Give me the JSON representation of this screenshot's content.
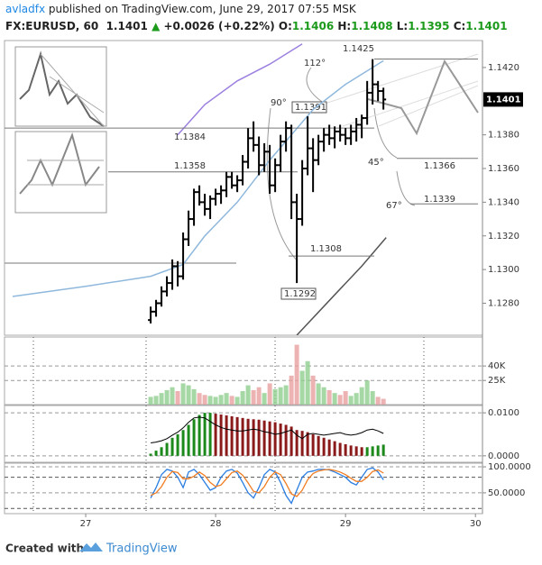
{
  "header": {
    "author": "avladfx",
    "published": "published on TradingView.com, June 29, 2017 07:55 MSK",
    "symbol": "FX:EURUSD, 60",
    "last": "1.1401",
    "change": "+0.0026 (+0.22%)",
    "ohlc": [
      {
        "label": "O:",
        "value": "1.1406"
      },
      {
        "label": "H:",
        "value": "1.1408"
      },
      {
        "label": "L:",
        "value": "1.1395"
      },
      {
        "label": "C:",
        "value": "1.1401"
      }
    ]
  },
  "footer": {
    "created": "Created with",
    "brand": "TradingView"
  },
  "chart_data": [
    {
      "type": "ohlc",
      "color": "#000000",
      "last": 1.1401,
      "x": [
        36,
        37,
        38,
        39,
        40,
        41,
        42,
        43,
        44,
        45,
        46,
        47,
        48,
        49,
        50,
        51,
        52,
        53,
        54,
        55,
        56,
        57,
        58,
        59,
        60,
        61,
        62,
        63,
        64,
        65,
        66,
        67,
        68,
        69,
        70,
        71,
        72,
        73,
        74,
        75,
        76,
        77,
        78,
        79
      ],
      "open": [
        1.127,
        1.1275,
        1.128,
        1.1287,
        1.1292,
        1.1302,
        1.1296,
        1.1318,
        1.133,
        1.1346,
        1.134,
        1.1336,
        1.1342,
        1.1345,
        1.1347,
        1.1355,
        1.135,
        1.1353,
        1.1364,
        1.1378,
        1.1374,
        1.1362,
        1.137,
        1.135,
        1.1362,
        1.1376,
        1.1384,
        1.134,
        1.133,
        1.136,
        1.1372,
        1.1365,
        1.1376,
        1.138,
        1.1378,
        1.1382,
        1.138,
        1.1378,
        1.1382,
        1.1386,
        1.139,
        1.1405,
        1.141,
        1.1406
      ],
      "high": [
        1.1278,
        1.1282,
        1.129,
        1.1296,
        1.1306,
        1.1305,
        1.1322,
        1.1335,
        1.1348,
        1.135,
        1.1345,
        1.1344,
        1.1348,
        1.135,
        1.1358,
        1.1358,
        1.1356,
        1.1368,
        1.1384,
        1.1388,
        1.1379,
        1.1375,
        1.1374,
        1.1366,
        1.138,
        1.1388,
        1.1386,
        1.1345,
        1.1365,
        1.1391,
        1.1378,
        1.138,
        1.1384,
        1.1386,
        1.1385,
        1.1386,
        1.1384,
        1.1386,
        1.139,
        1.1392,
        1.1412,
        1.1425,
        1.1412,
        1.1408
      ],
      "low": [
        1.1268,
        1.1272,
        1.1278,
        1.1284,
        1.1288,
        1.129,
        1.1294,
        1.1314,
        1.1326,
        1.1338,
        1.1332,
        1.133,
        1.1338,
        1.1339,
        1.1343,
        1.1348,
        1.1346,
        1.135,
        1.136,
        1.137,
        1.1356,
        1.1358,
        1.1345,
        1.1346,
        1.1358,
        1.137,
        1.133,
        1.1292,
        1.1326,
        1.1356,
        1.1346,
        1.1362,
        1.137,
        1.1374,
        1.1372,
        1.1376,
        1.1374,
        1.1374,
        1.1376,
        1.1378,
        1.1386,
        1.1398,
        1.14,
        1.1395
      ],
      "close": [
        1.1275,
        1.128,
        1.1287,
        1.1292,
        1.1302,
        1.1296,
        1.1318,
        1.133,
        1.1346,
        1.134,
        1.1336,
        1.1342,
        1.1345,
        1.1347,
        1.1355,
        1.135,
        1.1353,
        1.1364,
        1.1378,
        1.1374,
        1.1362,
        1.137,
        1.135,
        1.1362,
        1.1376,
        1.1384,
        1.134,
        1.133,
        1.136,
        1.1372,
        1.1365,
        1.1376,
        1.138,
        1.1378,
        1.1382,
        1.138,
        1.1378,
        1.1382,
        1.1386,
        1.139,
        1.1405,
        1.141,
        1.1406,
        1.1401
      ],
      "lines": [
        {
          "color": "#8fb8dc",
          "x": [
            10.5,
            24,
            36,
            42,
            46,
            52,
            58,
            66,
            72,
            79
          ],
          "values": [
            1.1284,
            1.129,
            1.1296,
            1.1303,
            1.132,
            1.134,
            1.1365,
            1.1395,
            1.141,
            1.1424
          ]
        },
        {
          "color": "#9c80e0",
          "x": [
            41,
            46,
            52,
            58,
            64
          ],
          "values": [
            1.138,
            1.1398,
            1.1412,
            1.1422,
            1.1434
          ]
        },
        {
          "color": "#555555",
          "x": [
            63,
            70,
            75,
            79.5
          ],
          "values": [
            1.1261,
            1.1285,
            1.1302,
            1.1319
          ]
        }
      ],
      "levels": [
        {
          "value": 1.1425,
          "label": "1.1425"
        },
        {
          "value": 1.1384,
          "label": "1.1384"
        },
        {
          "value": 1.1358,
          "label": "1.1358"
        },
        {
          "value": 1.1308,
          "label": "1.1308"
        },
        {
          "value": 1.1366,
          "label": "1.1366"
        },
        {
          "value": 1.1339,
          "label": "1.1339"
        }
      ],
      "annotations": [
        "112°",
        "90°",
        "45°",
        "67°",
        "1.1391",
        "1.1292"
      ],
      "xlim": [
        9,
        97.3
      ],
      "ylim": [
        1.1261,
        1.1436
      ],
      "xticks": [
        {
          "value": 24,
          "label": "27"
        },
        {
          "value": 48,
          "label": "28"
        },
        {
          "value": 72,
          "label": "29"
        },
        {
          "value": 96,
          "label": "30"
        }
      ],
      "yticks": [
        {
          "value": 1.128,
          "label": "1.1280"
        },
        {
          "value": 1.13,
          "label": "1.1300"
        },
        {
          "value": 1.132,
          "label": "1.1320"
        },
        {
          "value": 1.134,
          "label": "1.1340"
        },
        {
          "value": 1.136,
          "label": "1.1360"
        },
        {
          "value": 1.138,
          "label": "1.1380"
        },
        {
          "value": 1.142,
          "label": "1.1420"
        }
      ]
    },
    {
      "type": "volume",
      "up_color": "#8fce8f",
      "down_color": "#e8a0a0",
      "values": [
        8000,
        9000,
        12000,
        15000,
        18000,
        14000,
        22000,
        20000,
        16000,
        12000,
        10000,
        9000,
        8000,
        10000,
        12000,
        9000,
        8000,
        14000,
        20000,
        15000,
        18000,
        12000,
        22000,
        16000,
        18000,
        20000,
        30000,
        62000,
        35000,
        45000,
        30000,
        22000,
        18000,
        15000,
        12000,
        10000,
        14000,
        9000,
        12000,
        18000,
        25000,
        14000,
        8000,
        6000
      ],
      "ylim": [
        0,
        70000
      ],
      "yticks": [
        {
          "value": 40000,
          "label": "40K"
        },
        {
          "value": 25000,
          "label": "25K"
        }
      ]
    },
    {
      "type": "macd",
      "up_color": "#1b8a1b",
      "down_color": "#8b1a1a",
      "line_color": "#000000",
      "values": [
        0.0005,
        0.0012,
        0.002,
        0.003,
        0.0042,
        0.005,
        0.006,
        0.0072,
        0.0085,
        0.0095,
        0.01,
        0.01,
        0.0098,
        0.0096,
        0.0094,
        0.0092,
        0.009,
        0.0088,
        0.0086,
        0.0085,
        0.0084,
        0.0082,
        0.008,
        0.0078,
        0.0075,
        0.0072,
        0.0068,
        0.006,
        0.0058,
        0.0055,
        0.005,
        0.0046,
        0.0042,
        0.0038,
        0.0034,
        0.003,
        0.0027,
        0.0024,
        0.0022,
        0.002,
        0.002,
        0.0022,
        0.0024,
        0.0026
      ],
      "line": [
        0.003,
        0.0032,
        0.0035,
        0.004,
        0.0048,
        0.0055,
        0.0065,
        0.0078,
        0.0088,
        0.009,
        0.0088,
        0.008,
        0.0072,
        0.0066,
        0.0062,
        0.006,
        0.0058,
        0.0058,
        0.006,
        0.0062,
        0.006,
        0.0056,
        0.0054,
        0.005,
        0.0052,
        0.0056,
        0.006,
        0.0048,
        0.004,
        0.005,
        0.0052,
        0.005,
        0.0048,
        0.005,
        0.0052,
        0.0054,
        0.005,
        0.0048,
        0.005,
        0.0054,
        0.006,
        0.0062,
        0.0058,
        0.0052
      ],
      "ylim": [
        -0.0015,
        0.0117
      ],
      "yticks": [
        {
          "value": 0.01,
          "label": "0.0100"
        },
        {
          "value": 0,
          "label": "0.0000"
        }
      ]
    },
    {
      "type": "stoch",
      "k_color": "#2a7de1",
      "d_color": "#f07d22",
      "k": [
        40,
        60,
        85,
        95,
        92,
        80,
        60,
        90,
        95,
        85,
        70,
        55,
        60,
        80,
        92,
        95,
        88,
        70,
        50,
        40,
        60,
        85,
        95,
        90,
        70,
        45,
        30,
        55,
        80,
        90,
        92,
        95,
        95,
        94,
        90,
        85,
        80,
        70,
        65,
        80,
        95,
        98,
        90,
        75
      ],
      "d": [
        45,
        50,
        62,
        80,
        91,
        89,
        77,
        77,
        82,
        90,
        83,
        70,
        62,
        65,
        77,
        89,
        92,
        84,
        69,
        53,
        50,
        62,
        80,
        90,
        85,
        68,
        48,
        43,
        55,
        75,
        87,
        92,
        94,
        95,
        93,
        90,
        85,
        78,
        72,
        72,
        80,
        91,
        94,
        88
      ],
      "bands": [
        80,
        20
      ],
      "ylim": [
        10,
        107
      ],
      "yticks": [
        {
          "value": 100,
          "label": "100.0000"
        },
        {
          "value": 50,
          "label": "50.0000"
        }
      ]
    }
  ]
}
